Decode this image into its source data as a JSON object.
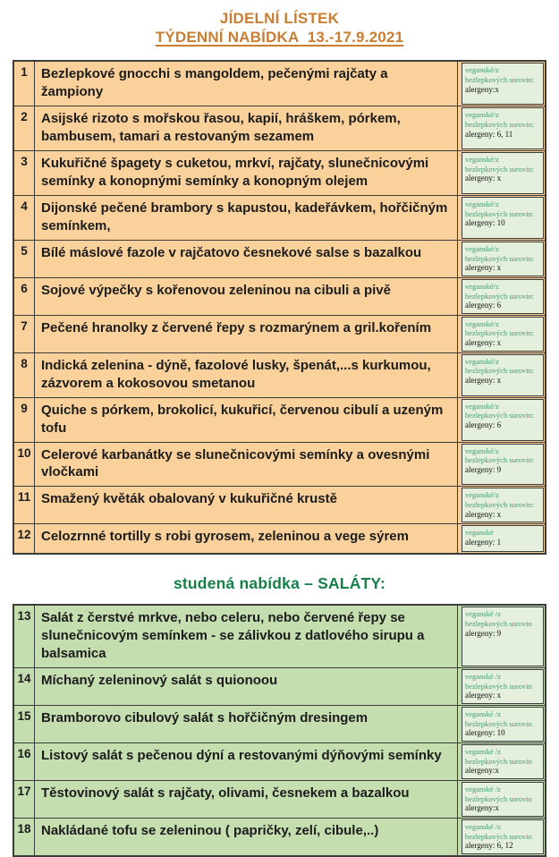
{
  "header": {
    "title_line1": "JÍDELNÍ LÍSTEK",
    "title_line2": "TÝDENNÍ NABÍDKA  13.-17.9.2021"
  },
  "section2_title": "studená nabídka – SALÁTY:",
  "colors": {
    "title_orange": "#c87e33",
    "subtitle_green": "#17804a",
    "diet_label_green": "#3fa06c",
    "hot_row_background": "#fbd19b",
    "salad_row_background": "#c5deb0",
    "allergen_box_background": "#e4efdc",
    "table_border": "#3c3c3c"
  },
  "tables": [
    {
      "name": "hot-dishes",
      "rows": [
        {
          "number": "1",
          "dish": "Bezlepkové gnocchi s mangoldem, pečenými rajčaty a žampiony",
          "diet": "veganské/z bezlepkových surovin:",
          "allergens": "alergeny:x"
        },
        {
          "number": "2",
          "dish": "Asijské rizoto s mořskou řasou, kapií, hráškem, pórkem, bambusem, tamari a restovaným sezamem",
          "diet": "veganské/z bezlepkových surovin:",
          "allergens": "alergeny: 6, 11"
        },
        {
          "number": "3",
          "dish": "Kukuřičné špagety s cuketou, mrkví, rajčaty, slunečnicovými semínky a konopnými semínky a konopným olejem",
          "diet": "veganské/z bezlepkových surovin:",
          "allergens": "alergeny: x"
        },
        {
          "number": "4",
          "dish": "Dijonské pečené brambory s kapustou, kadeřávkem, hořčičným semínkem,",
          "diet": "veganské/z bezlepkových surovin:",
          "allergens": "alergeny: 10"
        },
        {
          "number": "5",
          "dish": "Bílé máslové fazole v rajčatovo česnekové salse s bazalkou",
          "diet": "veganské/z bezlepkových surovin:",
          "allergens": "alergeny: x"
        },
        {
          "number": "6",
          "dish": "Sojové výpečky s kořenovou zeleninou na cibuli a pivě",
          "diet": "veganské/z bezlepkových surovin:",
          "allergens": "alergeny: 6"
        },
        {
          "number": "7",
          "dish": "Pečené hranolky z červené řepy s rozmarýnem a gril.kořením",
          "diet": "veganské/z bezlepkových surovin:",
          "allergens": "alergeny: x"
        },
        {
          "number": "8",
          "dish": "Indická zelenina - dýně, fazolové lusky, špenát,...s kurkumou, zázvorem a kokosovou smetanou",
          "diet": "veganské/z bezlepkových surovin:",
          "allergens": "alergeny: x"
        },
        {
          "number": "9",
          "dish": "Quiche s pórkem, brokolicí, kukuřicí, červenou cibulí a uzeným tofu",
          "diet": "veganské/z bezlepkových surovin:",
          "allergens": "alergeny: 6"
        },
        {
          "number": "10",
          "dish": "Celerové karbanátky se slunečnicovými semínky a ovesnými vločkami",
          "diet": "veganské/z bezlepkových surovin:",
          "allergens": "alergeny: 9"
        },
        {
          "number": "11",
          "dish": "Smažený květák obalovaný v kukuřičné krustě",
          "diet": "veganské/z bezlepkových surovin:",
          "allergens": "alergeny: x"
        },
        {
          "number": "12",
          "dish": "Celozrnné tortilly s robi gyrosem, zeleninou a vege sýrem",
          "diet": "veganské",
          "allergens": "alergeny: 1"
        }
      ]
    },
    {
      "name": "salads",
      "rows": [
        {
          "number": "13",
          "dish": "Salát z čerstvé mrkve, nebo celeru, nebo červené řepy se slunečnicovým semínkem - se zálivkou z datlového sirupu a balsamica",
          "diet": "veganské /z bezlepkových surovin",
          "allergens": "alergeny: 9"
        },
        {
          "number": "14",
          "dish": "Míchaný zeleninový salát s quionoou",
          "diet": "veganské /z bezlepkových surovin",
          "allergens": "alergeny: x"
        },
        {
          "number": "15",
          "dish": "Bramborovo cibulový salát s hořčičným dresingem",
          "diet": "veganské /z bezlepkových surovin",
          "allergens": "alergeny: 10"
        },
        {
          "number": "16",
          "dish": "Listový salát s pečenou dýní a restovanými dýňovými semínky",
          "diet": "veganské /z bezlepkových surovin",
          "allergens": "alergeny:x"
        },
        {
          "number": "17",
          "dish": "Těstovinový salát s rajčaty, olivami, česnekem a bazalkou",
          "diet": "veganské /z bezlepkových surovin",
          "allergens": "alergeny:x"
        },
        {
          "number": "18",
          "dish": "Nakládané tofu se zeleninou ( papričky, zelí, cibule,..)",
          "diet": "veganské /z bezlepkových surovin",
          "allergens": "alergeny: 6, 12"
        }
      ]
    }
  ]
}
